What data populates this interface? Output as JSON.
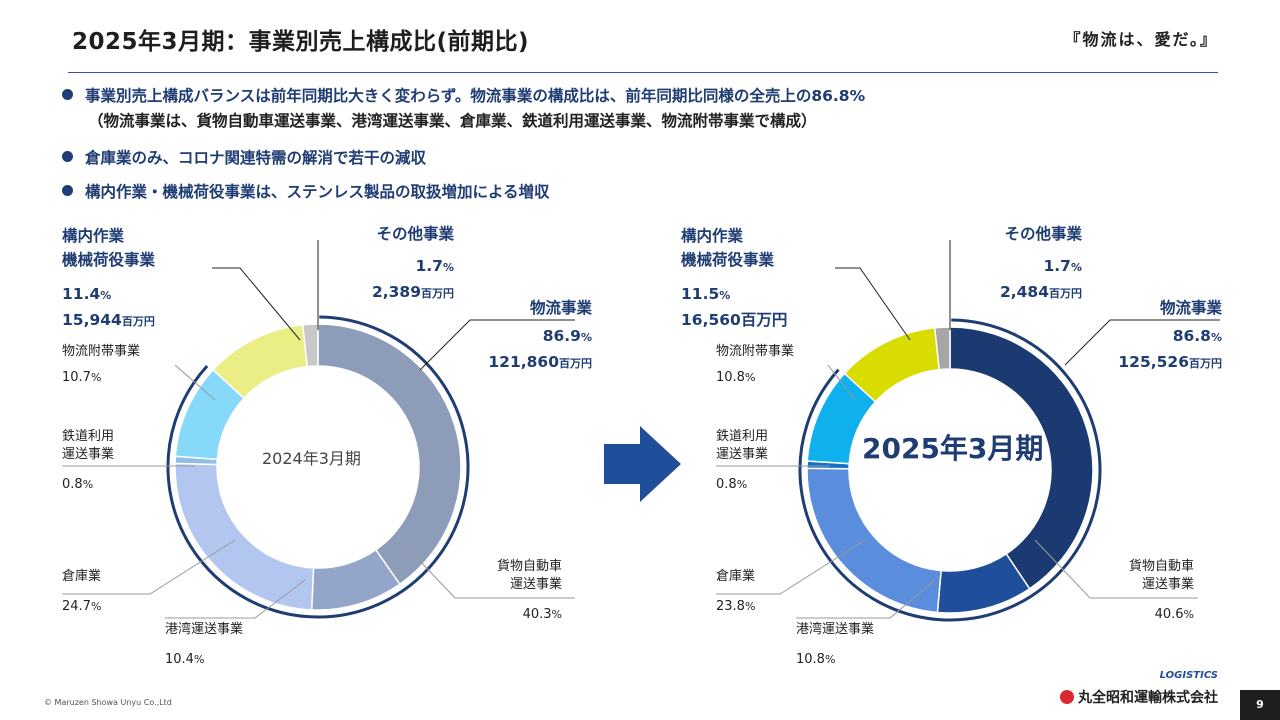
{
  "header": {
    "title": "2025年3月期：事業別売上構成比(前期比)",
    "slogan": "『物流は、愛だ。』"
  },
  "bullets": [
    "事業別売上構成バランスは前年同期比大きく変わらず。物流事業の構成比は、前年同期比同様の全売上の86.8%",
    "（物流事業は、貨物自動車運送事業、港湾運送事業、倉庫業、鉄道利用運送事業、物流附帯事業で構成）",
    "倉庫業のみ、コロナ関連特需の解消で若干の減収",
    "構内作業・機械荷役事業は、ステンレス製品の取扱増加による増収"
  ],
  "chart_data": [
    {
      "type": "pie",
      "center_label": "2024年3月期",
      "categories": [
        "貨物自動車運送事業",
        "港湾運送事業",
        "倉庫業",
        "鉄道利用運送事業",
        "物流附帯事業",
        "構内作業・機械荷役事業",
        "その他事業"
      ],
      "values": [
        40.3,
        10.4,
        24.7,
        0.8,
        10.7,
        11.4,
        1.7
      ],
      "colors": [
        "#8c9cb9",
        "#93a6c9",
        "#b3c6ef",
        "#8fbfe6",
        "#86d9f9",
        "#eaee85",
        "#c8c8c8"
      ],
      "group_totals": {
        "logistics": {
          "label": "物流事業",
          "pct": "86.9",
          "amount": "121,860"
        },
        "onsite": {
          "label1": "構内作業",
          "label2": "機械荷役事業",
          "pct": "11.4",
          "amount": "15,944"
        },
        "other": {
          "label": "その他事業",
          "pct": "1.7",
          "amount": "2,389"
        }
      }
    },
    {
      "type": "pie",
      "center_label": "2025年3月期",
      "categories": [
        "貨物自動車運送事業",
        "港湾運送事業",
        "倉庫業",
        "鉄道利用運送事業",
        "物流附帯事業",
        "構内作業・機械荷役事業",
        "その他事業"
      ],
      "values": [
        40.6,
        10.8,
        23.8,
        0.8,
        10.8,
        11.5,
        1.7
      ],
      "colors": [
        "#1b3a72",
        "#1f4e9a",
        "#5b8ddd",
        "#1570c8",
        "#0fb0ee",
        "#d9dc00",
        "#a6a6a6"
      ],
      "group_totals": {
        "logistics": {
          "label": "物流事業",
          "pct": "86.8",
          "amount": "125,526"
        },
        "onsite": {
          "label1": "構内作業",
          "label2": "機械荷役事業",
          "pct": "11.5",
          "amount": "16,560"
        },
        "other": {
          "label": "その他事業",
          "pct": "1.7",
          "amount": "2,484"
        }
      }
    }
  ],
  "labels": {
    "unit_pct": "%",
    "unit_million": "百万円",
    "truck1": "貨物自動車",
    "truck2": "運送事業",
    "port": "港湾運送事業",
    "warehouse": "倉庫業",
    "rail1": "鉄道利用",
    "rail2": "運送事業",
    "ancillary": "物流附帯事業"
  },
  "colors": {
    "accent": "#1f3d73",
    "arrow": "#1f4e9a"
  },
  "footer": {
    "copyright": "© Maruzen Showa Unyu Co.,Ltd",
    "company": "丸全昭和運輸株式会社",
    "logo_text": "LOGISTICS",
    "page": "9"
  }
}
